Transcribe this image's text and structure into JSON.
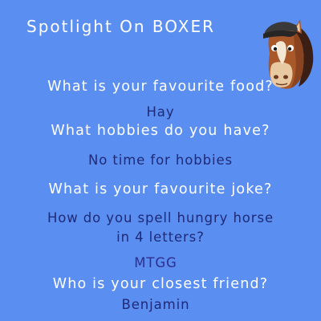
{
  "header": {
    "title": "Spotlight On BOXER"
  },
  "mascot": {
    "icon": "horse-head-icon"
  },
  "qa": {
    "q1": "What is your favourite food?",
    "a1": "Hay",
    "q2": "What hobbies do you have?",
    "a2": "No time for hobbies",
    "q3": "What is your favourite joke?",
    "a3_line1": "How do you spell hungry horse",
    "a3_line2": "in 4 letters?",
    "a3_answer": "MTGG",
    "q4": "Who is your closest friend?",
    "a4": "Benjamin"
  },
  "colors": {
    "background": "#5a8ef0",
    "question_text": "#ffffff",
    "answer_text": "#1f2a78"
  }
}
